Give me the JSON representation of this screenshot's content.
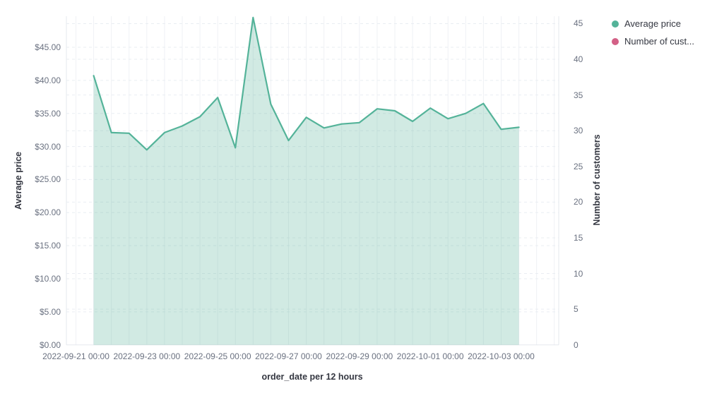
{
  "legend": {
    "position": "top-right",
    "items": [
      {
        "label": "Average price",
        "color": "#54B399"
      },
      {
        "label": "Number of cust...",
        "color": "#D36086"
      }
    ]
  },
  "colors": {
    "series_line": "#54B399",
    "series_fill": "rgba(84,179,153,0.27)",
    "second_series": "#D36086",
    "grid_vertical": "#eff1f5",
    "grid_horizontal": "#e9edf2",
    "plot_edge": "#e5e8ee",
    "tick_text": "#6a7180",
    "axis_title_text": "#343741"
  },
  "chart_data": {
    "type": "area",
    "title": "",
    "xlabel": "order_date per 12 hours",
    "ylabel_left": "Average price",
    "ylabel_right": "Number of customers",
    "x_interval": "12 hours",
    "grid": {
      "horizontal": "dashed",
      "vertical": "solid"
    },
    "legend_position": "top-right",
    "x": [
      "2022-09-21 12:00",
      "2022-09-22 00:00",
      "2022-09-22 12:00",
      "2022-09-23 00:00",
      "2022-09-23 12:00",
      "2022-09-24 00:00",
      "2022-09-24 12:00",
      "2022-09-25 00:00",
      "2022-09-25 12:00",
      "2022-09-26 00:00",
      "2022-09-26 12:00",
      "2022-09-27 00:00",
      "2022-09-27 12:00",
      "2022-09-28 00:00",
      "2022-09-28 12:00",
      "2022-09-29 00:00",
      "2022-09-29 12:00",
      "2022-09-30 00:00",
      "2022-09-30 12:00",
      "2022-10-01 00:00",
      "2022-10-01 12:00",
      "2022-10-02 00:00",
      "2022-10-02 12:00",
      "2022-10-03 00:00",
      "2022-10-03 12:00"
    ],
    "series": [
      {
        "name": "Average price",
        "axis": "left",
        "color": "#54B399",
        "values": [
          40.7,
          32.1,
          32.0,
          29.5,
          32.1,
          33.1,
          34.5,
          37.4,
          29.8,
          49.5,
          36.4,
          30.9,
          34.4,
          32.8,
          33.4,
          33.6,
          35.7,
          35.4,
          33.8,
          35.8,
          34.2,
          35.0,
          36.5,
          32.6,
          32.9
        ]
      },
      {
        "name": "Number of customers",
        "axis": "right",
        "color": "#D36086",
        "values": [],
        "visible_in_plot": false
      }
    ],
    "left_axis": {
      "label": "Average price",
      "format": "USD currency",
      "ticks": [
        "$45.00",
        "$40.00",
        "$35.00",
        "$30.00",
        "$25.00",
        "$20.00",
        "$15.00",
        "$10.00",
        "$5.00",
        "$0.00"
      ],
      "ylim": [
        0,
        49.7
      ]
    },
    "right_axis": {
      "label": "Number of customers",
      "ticks": [
        "45",
        "40",
        "35",
        "30",
        "25",
        "20",
        "15",
        "10",
        "5",
        "0"
      ],
      "ylim": [
        0,
        46
      ]
    },
    "x_ticks": [
      "2022-09-21 00:00",
      "2022-09-23 00:00",
      "2022-09-25 00:00",
      "2022-09-27 00:00",
      "2022-09-29 00:00",
      "2022-10-01 00:00",
      "2022-10-03 00:00"
    ]
  }
}
